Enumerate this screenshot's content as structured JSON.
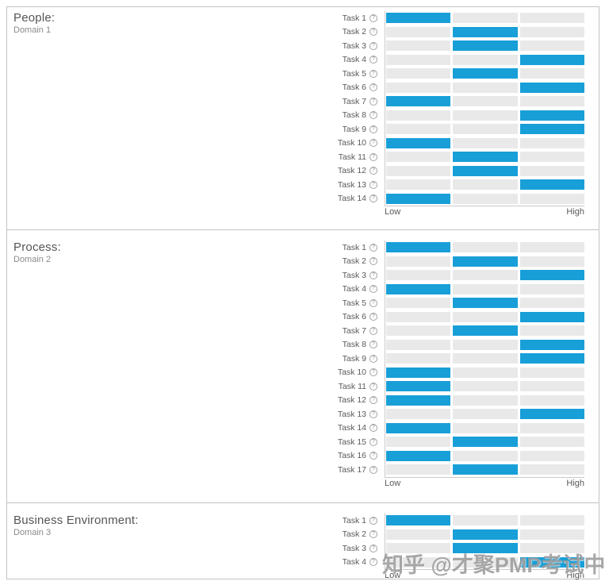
{
  "report": {
    "axis_low": "Low",
    "axis_high": "High",
    "help_icon_glyph": "?"
  },
  "watermark": {
    "text": "知乎 @才聚PMP考试中心"
  },
  "colors": {
    "bar_fill": "#189fd8",
    "bar_empty": "#e9e9e9",
    "axis_line": "#c9c9c9",
    "panel_border": "#c3c3c3"
  },
  "chart_data": [
    {
      "type": "bar",
      "orientation": "horizontal",
      "title": "People:",
      "subtitle": "Domain 1",
      "categories": [
        "Task 1",
        "Task 2",
        "Task 3",
        "Task 4",
        "Task 5",
        "Task 6",
        "Task 7",
        "Task 8",
        "Task 9",
        "Task 10",
        "Task 11",
        "Task 12",
        "Task 13",
        "Task 14"
      ],
      "values": [
        1,
        2,
        2,
        3,
        2,
        3,
        1,
        3,
        3,
        1,
        2,
        2,
        3,
        1
      ],
      "value_scale": {
        "1": "Low",
        "2": "Mid",
        "3": "High"
      },
      "xlim": [
        0,
        3
      ],
      "xlabel_left": "Low",
      "xlabel_right": "High",
      "grid": false,
      "legend": false
    },
    {
      "type": "bar",
      "orientation": "horizontal",
      "title": "Process:",
      "subtitle": "Domain 2",
      "categories": [
        "Task 1",
        "Task 2",
        "Task 3",
        "Task 4",
        "Task 5",
        "Task 6",
        "Task 7",
        "Task 8",
        "Task 9",
        "Task 10",
        "Task 11",
        "Task 12",
        "Task 13",
        "Task 14",
        "Task 15",
        "Task 16",
        "Task 17"
      ],
      "values": [
        1,
        2,
        3,
        1,
        2,
        3,
        2,
        3,
        3,
        1,
        1,
        1,
        3,
        1,
        2,
        1,
        2
      ],
      "value_scale": {
        "1": "Low",
        "2": "Mid",
        "3": "High"
      },
      "xlim": [
        0,
        3
      ],
      "xlabel_left": "Low",
      "xlabel_right": "High",
      "grid": false,
      "legend": false
    },
    {
      "type": "bar",
      "orientation": "horizontal",
      "title": "Business Environment:",
      "subtitle": "Domain 3",
      "categories": [
        "Task 1",
        "Task 2",
        "Task 3",
        "Task 4"
      ],
      "values": [
        1,
        2,
        2,
        3
      ],
      "value_scale": {
        "1": "Low",
        "2": "Mid",
        "3": "High"
      },
      "xlim": [
        0,
        3
      ],
      "xlabel_left": "Low",
      "xlabel_right": "High",
      "grid": false,
      "legend": false
    }
  ]
}
